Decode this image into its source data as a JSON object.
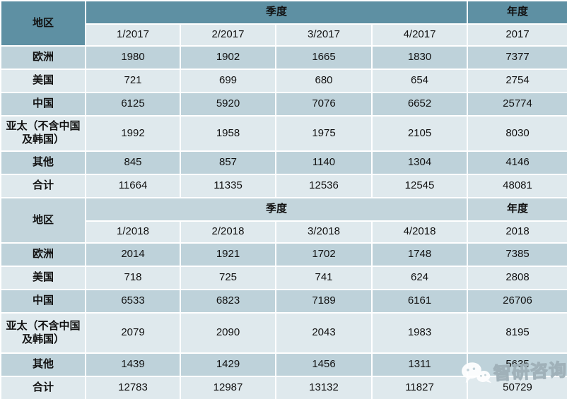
{
  "chart_data": {
    "type": "table",
    "blocks": [
      {
        "region_header": "地区",
        "quarter_header": "季度",
        "year_header": "年度",
        "quarter_cols": [
          "1/2017",
          "2/2017",
          "3/2017",
          "4/2017"
        ],
        "year_col": "2017",
        "rows": [
          {
            "region": "欧洲",
            "values": [
              1980,
              1902,
              1665,
              1830,
              7377
            ]
          },
          {
            "region": "美国",
            "values": [
              721,
              699,
              680,
              654,
              2754
            ]
          },
          {
            "region": "中国",
            "values": [
              6125,
              5920,
              7076,
              6652,
              25774
            ]
          },
          {
            "region": "亚太（不含中国及韩国）",
            "values": [
              1992,
              1958,
              1975,
              2105,
              8030
            ]
          },
          {
            "region": "其他",
            "values": [
              845,
              857,
              1140,
              1304,
              4146
            ]
          },
          {
            "region": "合计",
            "values": [
              11664,
              11335,
              12536,
              12545,
              48081
            ]
          }
        ]
      },
      {
        "region_header": "地区",
        "quarter_header": "季度",
        "year_header": "年度",
        "quarter_cols": [
          "1/2018",
          "2/2018",
          "3/2018",
          "4/2018"
        ],
        "year_col": "2018",
        "rows": [
          {
            "region": "欧洲",
            "values": [
              2014,
              1921,
              1702,
              1748,
              7385
            ]
          },
          {
            "region": "美国",
            "values": [
              718,
              725,
              741,
              624,
              2808
            ]
          },
          {
            "region": "中国",
            "values": [
              6533,
              6823,
              7189,
              6161,
              26706
            ]
          },
          {
            "region": "亚太（不含中国及韩国）",
            "values": [
              2079,
              2090,
              2043,
              1983,
              8195
            ]
          },
          {
            "region": "其他",
            "values": [
              1439,
              1429,
              1456,
              1311,
              5635
            ]
          },
          {
            "region": "合计",
            "values": [
              12783,
              12987,
              13132,
              11827,
              50729
            ]
          }
        ]
      }
    ]
  },
  "watermark": {
    "text": "智研咨询",
    "icon": "wechat-bubbles-icon"
  },
  "colors": {
    "header_teal": "#5e90a3",
    "block2_header_blue": "#c3d5dc",
    "row_dark": "#bed2da",
    "row_light": "#dfe9ed",
    "grid_line": "#ffffff",
    "text": "#111111",
    "watermark_fill": "#ffffff",
    "watermark_outline": "#9fb0b8"
  }
}
